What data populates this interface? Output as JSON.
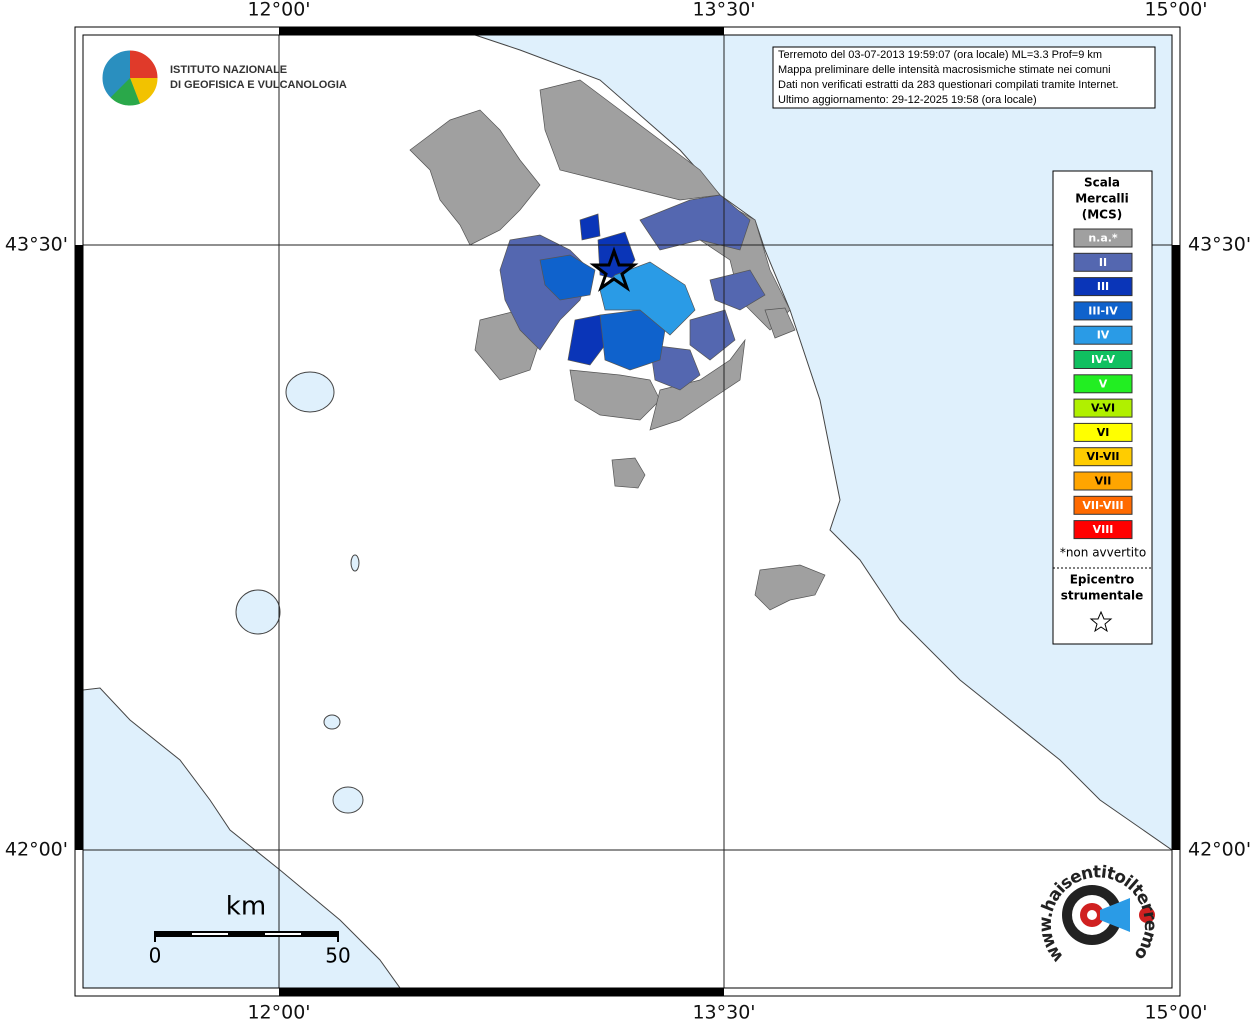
{
  "frame": {
    "top_labels": [
      "12°00'",
      "13°30'",
      "15°00'"
    ],
    "bottom_labels": [
      "12°00'",
      "13°30'",
      "15°00'"
    ],
    "left_labels": [
      "43°30'",
      "42°00'"
    ],
    "right_labels": [
      "43°30'",
      "42°00'"
    ]
  },
  "institute": [
    "ISTITUTO NAZIONALE",
    "DI GEOFISICA E VULCANOLOGIA"
  ],
  "info": [
    "Terremoto del 03-07-2013 19:59:07 (ora locale) ML=3.3 Prof=9 km",
    "Mappa preliminare delle intensità macrosismiche stimate nei comuni",
    "Dati non verificati estratti da 283 questionari compilati tramite Internet.",
    "Ultimo aggiornamento: 29-12-2025 19:58 (ora locale)"
  ],
  "legend": {
    "title": [
      "Scala",
      "Mercalli",
      "(MCS)"
    ],
    "items": [
      {
        "label": "n.a.*",
        "color": "#a0a0a0"
      },
      {
        "label": "II",
        "color": "#5467b0"
      },
      {
        "label": "III",
        "color": "#0a35b8"
      },
      {
        "label": "III-IV",
        "color": "#0f62cc"
      },
      {
        "label": "IV",
        "color": "#2a9be6"
      },
      {
        "label": "IV-V",
        "color": "#10c060"
      },
      {
        "label": "V",
        "color": "#22ee22"
      },
      {
        "label": "V-VI",
        "color": "#b0f000"
      },
      {
        "label": "VI",
        "color": "#ffff00"
      },
      {
        "label": "VI-VII",
        "color": "#ffcc00"
      },
      {
        "label": "VII",
        "color": "#ffa500"
      },
      {
        "label": "VII-VIII",
        "color": "#ff6a00"
      },
      {
        "label": "VIII",
        "color": "#ff0000"
      }
    ],
    "note": "*non avvertito",
    "epicenter": [
      "Epicentro",
      "strumentale"
    ]
  },
  "scale": {
    "unit": "km",
    "start": "0",
    "end": "50"
  },
  "site": "www.haisentitoilterremoto.it"
}
